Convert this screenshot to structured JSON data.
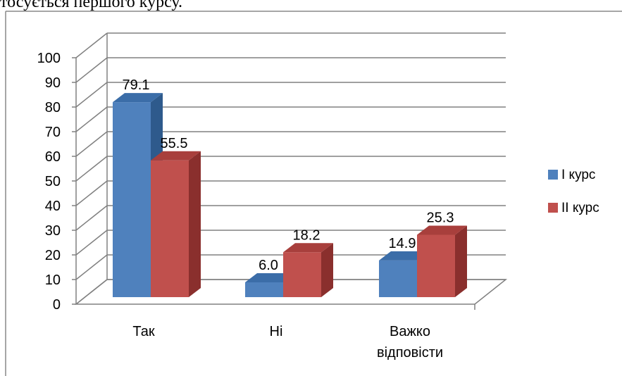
{
  "caption": "тосується першого курсу.",
  "colors": {
    "series1_front": "#4F81BD",
    "series1_side": "#2E5A8C",
    "series1_top": "#3B6DA8",
    "series2_front": "#C0504D",
    "series2_side": "#8A2F2D",
    "series2_top": "#A83F3C",
    "grid": "#808080"
  },
  "chart_data": {
    "type": "bar",
    "categories": [
      [
        "Так"
      ],
      [
        "Ні"
      ],
      [
        "Важко",
        "відповісти"
      ]
    ],
    "series": [
      {
        "name": "І курс",
        "values": [
          79.1,
          6.0,
          14.9
        ],
        "labels": [
          "79.1",
          "6.0",
          "14.9"
        ]
      },
      {
        "name": "ІІ курс",
        "values": [
          55.5,
          18.2,
          25.3
        ],
        "labels": [
          "55.5",
          "18.2",
          "25.3"
        ]
      }
    ],
    "y_ticks": [
      "0",
      "10",
      "20",
      "30",
      "40",
      "50",
      "60",
      "70",
      "80",
      "90",
      "100"
    ],
    "ylim": [
      0,
      100
    ],
    "grid": true,
    "legend": "right",
    "style": "3d-clustered-column"
  }
}
